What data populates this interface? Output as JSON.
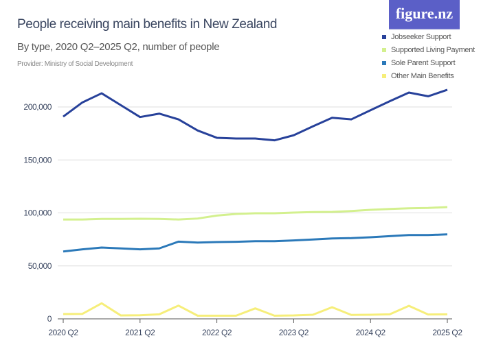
{
  "header": {
    "title": "People receiving main benefits in New Zealand",
    "subtitle": "By type, 2020 Q2–2025 Q2, number of people",
    "provider": "Provider: Ministry of Social Development",
    "logo": "figure.nz"
  },
  "chart_data": {
    "type": "line",
    "title": "People receiving main benefits in New Zealand",
    "subtitle": "By type, 2020 Q2–2025 Q2, number of people",
    "x": [
      "2020 Q2",
      "2020 Q3",
      "2020 Q4",
      "2021 Q1",
      "2021 Q2",
      "2021 Q3",
      "2021 Q4",
      "2022 Q1",
      "2022 Q2",
      "2022 Q3",
      "2022 Q4",
      "2023 Q1",
      "2023 Q2",
      "2023 Q3",
      "2023 Q4",
      "2024 Q1",
      "2024 Q2",
      "2024 Q3",
      "2024 Q4",
      "2025 Q1",
      "2025 Q2"
    ],
    "x_ticks": [
      "2020 Q2",
      "2021 Q2",
      "2022 Q2",
      "2023 Q2",
      "2024 Q2",
      "2025 Q2"
    ],
    "y_ticks": [
      0,
      50000,
      100000,
      150000,
      200000
    ],
    "y_tick_labels": [
      "0",
      "50,000",
      "100,000",
      "150,000",
      "200,000"
    ],
    "ylim": [
      0,
      200000
    ],
    "grid": true,
    "legend_position": "top-right",
    "series": [
      {
        "name": "Jobseeker Support",
        "color": "#27419a",
        "values": [
          190900,
          204300,
          212900,
          201700,
          190500,
          193700,
          188300,
          177800,
          170900,
          170200,
          170200,
          168500,
          173300,
          181700,
          189800,
          188300,
          196900,
          205400,
          213600,
          210100,
          216200
        ]
      },
      {
        "name": "Supported Living Payment",
        "color": "#d3f08e",
        "values": [
          93800,
          93800,
          94300,
          94300,
          94500,
          94300,
          93800,
          94700,
          97500,
          99000,
          99700,
          99700,
          100300,
          100800,
          101000,
          101800,
          102900,
          103700,
          104400,
          104700,
          105500
        ]
      },
      {
        "name": "Sole Parent Support",
        "color": "#2b79b9",
        "values": [
          63600,
          65600,
          67300,
          66500,
          65600,
          66500,
          72900,
          72000,
          72500,
          72700,
          73300,
          73300,
          74000,
          74900,
          75900,
          76200,
          77000,
          78100,
          79100,
          79100,
          79800
        ]
      },
      {
        "name": "Other Main Benefits",
        "color": "#f6ee7a",
        "values": [
          4500,
          4700,
          14700,
          3200,
          3400,
          4300,
          12500,
          3000,
          3000,
          3000,
          9900,
          3000,
          3200,
          3900,
          11000,
          3700,
          3900,
          4300,
          12300,
          4100,
          4300
        ]
      }
    ]
  }
}
